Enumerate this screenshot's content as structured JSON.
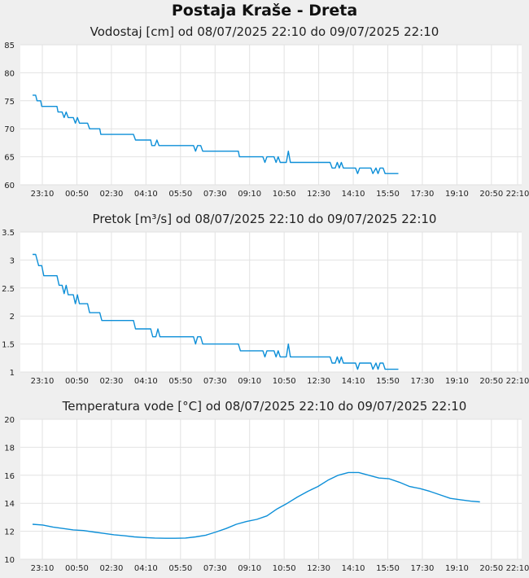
{
  "page_title": "Postaja Kraše - Dreta",
  "chart_data": [
    {
      "type": "line",
      "title": "Vodostaj [cm] od 08/07/2025 22:10 do 09/07/2025 22:10",
      "xlabel": "",
      "ylabel": "",
      "ylim": [
        60,
        85
      ],
      "yticks": [
        "60",
        "65",
        "70",
        "75",
        "80",
        "85"
      ],
      "xticks": [
        "23:10",
        "00:50",
        "02:30",
        "04:10",
        "05:50",
        "07:30",
        "09:10",
        "10:50",
        "12:30",
        "14:10",
        "15:50",
        "17:30",
        "19:10",
        "20:50",
        "22:10"
      ],
      "series": [
        {
          "values": [
            [
              0,
              76
            ],
            [
              0.15,
              76
            ],
            [
              0.22,
              75
            ],
            [
              0.4,
              75
            ],
            [
              0.45,
              74
            ],
            [
              1.2,
              74
            ],
            [
              1.25,
              73
            ],
            [
              1.45,
              73
            ],
            [
              1.55,
              72
            ],
            [
              1.65,
              73
            ],
            [
              1.75,
              72
            ],
            [
              2.0,
              72
            ],
            [
              2.1,
              71
            ],
            [
              2.2,
              72
            ],
            [
              2.3,
              71
            ],
            [
              2.7,
              71
            ],
            [
              2.8,
              70
            ],
            [
              3.3,
              70
            ],
            [
              3.35,
              69
            ],
            [
              4.95,
              69
            ],
            [
              5.05,
              68
            ],
            [
              5.8,
              68
            ],
            [
              5.85,
              67
            ],
            [
              6.0,
              67
            ],
            [
              6.1,
              68
            ],
            [
              6.2,
              67
            ],
            [
              7.9,
              67
            ],
            [
              8.0,
              66
            ],
            [
              8.1,
              67
            ],
            [
              8.25,
              67
            ],
            [
              8.35,
              66
            ],
            [
              10.1,
              66
            ],
            [
              10.15,
              65
            ],
            [
              11.3,
              65
            ],
            [
              11.4,
              64
            ],
            [
              11.5,
              65
            ],
            [
              11.85,
              65
            ],
            [
              11.95,
              64
            ],
            [
              12.05,
              65
            ],
            [
              12.15,
              64
            ],
            [
              12.45,
              64
            ],
            [
              12.55,
              66
            ],
            [
              12.65,
              64
            ],
            [
              14.6,
              64
            ],
            [
              14.7,
              63
            ],
            [
              14.85,
              63
            ],
            [
              14.95,
              64
            ],
            [
              15.05,
              63
            ],
            [
              15.15,
              64
            ],
            [
              15.25,
              63
            ],
            [
              15.85,
              63
            ],
            [
              15.95,
              62
            ],
            [
              16.05,
              63
            ],
            [
              16.6,
              63
            ],
            [
              16.7,
              62
            ],
            [
              16.85,
              63
            ],
            [
              16.95,
              62
            ],
            [
              17.05,
              63
            ],
            [
              17.2,
              63
            ],
            [
              17.3,
              62
            ],
            [
              17.95,
              62
            ]
          ]
        }
      ]
    },
    {
      "type": "line",
      "title": "Pretok [m³/s] od 08/07/2025 22:10 do 09/07/2025 22:10",
      "xlabel": "",
      "ylabel": "",
      "ylim": [
        1,
        3.5
      ],
      "yticks": [
        "1",
        "1.5",
        "2",
        "2.5",
        "3",
        "3.5"
      ],
      "xticks": [
        "23:10",
        "00:50",
        "02:30",
        "04:10",
        "05:50",
        "07:30",
        "09:10",
        "10:50",
        "12:30",
        "14:10",
        "15:50",
        "17:30",
        "19:10",
        "20:50",
        "22:10"
      ],
      "series": [
        {
          "values": [
            [
              0,
              3.1
            ],
            [
              0.15,
              3.1
            ],
            [
              0.3,
              2.9
            ],
            [
              0.45,
              2.9
            ],
            [
              0.55,
              2.72
            ],
            [
              1.2,
              2.72
            ],
            [
              1.3,
              2.55
            ],
            [
              1.45,
              2.55
            ],
            [
              1.55,
              2.4
            ],
            [
              1.65,
              2.55
            ],
            [
              1.75,
              2.38
            ],
            [
              2.0,
              2.38
            ],
            [
              2.1,
              2.22
            ],
            [
              2.2,
              2.38
            ],
            [
              2.3,
              2.22
            ],
            [
              2.7,
              2.22
            ],
            [
              2.8,
              2.06
            ],
            [
              3.3,
              2.06
            ],
            [
              3.4,
              1.92
            ],
            [
              4.95,
              1.92
            ],
            [
              5.05,
              1.77
            ],
            [
              5.8,
              1.77
            ],
            [
              5.9,
              1.63
            ],
            [
              6.05,
              1.63
            ],
            [
              6.15,
              1.77
            ],
            [
              6.25,
              1.63
            ],
            [
              7.9,
              1.63
            ],
            [
              8.0,
              1.5
            ],
            [
              8.1,
              1.63
            ],
            [
              8.25,
              1.63
            ],
            [
              8.35,
              1.5
            ],
            [
              10.1,
              1.5
            ],
            [
              10.2,
              1.38
            ],
            [
              11.3,
              1.38
            ],
            [
              11.4,
              1.27
            ],
            [
              11.5,
              1.38
            ],
            [
              11.85,
              1.38
            ],
            [
              11.95,
              1.27
            ],
            [
              12.05,
              1.38
            ],
            [
              12.15,
              1.27
            ],
            [
              12.45,
              1.27
            ],
            [
              12.55,
              1.5
            ],
            [
              12.65,
              1.27
            ],
            [
              14.6,
              1.27
            ],
            [
              14.7,
              1.16
            ],
            [
              14.85,
              1.16
            ],
            [
              14.95,
              1.27
            ],
            [
              15.05,
              1.16
            ],
            [
              15.15,
              1.27
            ],
            [
              15.25,
              1.16
            ],
            [
              15.85,
              1.16
            ],
            [
              15.95,
              1.05
            ],
            [
              16.05,
              1.16
            ],
            [
              16.6,
              1.16
            ],
            [
              16.7,
              1.05
            ],
            [
              16.85,
              1.16
            ],
            [
              16.95,
              1.05
            ],
            [
              17.05,
              1.16
            ],
            [
              17.2,
              1.16
            ],
            [
              17.3,
              1.05
            ],
            [
              17.95,
              1.05
            ]
          ]
        }
      ]
    },
    {
      "type": "line",
      "title": "Temperatura vode [°C] od 08/07/2025 22:10 do 09/07/2025 22:10",
      "xlabel": "",
      "ylabel": "",
      "ylim": [
        10,
        20
      ],
      "yticks": [
        "10",
        "12",
        "14",
        "16",
        "18",
        "20"
      ],
      "xticks": [
        "23:10",
        "00:50",
        "02:30",
        "04:10",
        "05:50",
        "07:30",
        "09:10",
        "10:50",
        "12:30",
        "14:10",
        "15:50",
        "17:30",
        "19:10",
        "20:50",
        "22:10"
      ],
      "series": [
        {
          "values": [
            [
              0,
              12.5
            ],
            [
              0.5,
              12.45
            ],
            [
              1.0,
              12.3
            ],
            [
              1.5,
              12.2
            ],
            [
              2.0,
              12.1
            ],
            [
              2.5,
              12.05
            ],
            [
              3.0,
              11.95
            ],
            [
              3.5,
              11.85
            ],
            [
              4.0,
              11.75
            ],
            [
              4.5,
              11.68
            ],
            [
              5.0,
              11.6
            ],
            [
              5.5,
              11.55
            ],
            [
              6.0,
              11.52
            ],
            [
              6.5,
              11.5
            ],
            [
              7.0,
              11.5
            ],
            [
              7.5,
              11.52
            ],
            [
              8.0,
              11.6
            ],
            [
              8.5,
              11.72
            ],
            [
              9.0,
              11.95
            ],
            [
              9.5,
              12.2
            ],
            [
              10.0,
              12.5
            ],
            [
              10.5,
              12.7
            ],
            [
              11.0,
              12.85
            ],
            [
              11.5,
              13.1
            ],
            [
              12.0,
              13.6
            ],
            [
              12.5,
              14.0
            ],
            [
              13.0,
              14.45
            ],
            [
              13.5,
              14.85
            ],
            [
              14.0,
              15.2
            ],
            [
              14.5,
              15.65
            ],
            [
              15.0,
              16.0
            ],
            [
              15.5,
              16.2
            ],
            [
              16.0,
              16.2
            ],
            [
              16.5,
              16.0
            ],
            [
              17.0,
              15.8
            ],
            [
              17.5,
              15.75
            ],
            [
              18.0,
              15.5
            ],
            [
              18.5,
              15.2
            ],
            [
              19.0,
              15.05
            ],
            [
              19.5,
              14.85
            ],
            [
              20.0,
              14.6
            ],
            [
              20.5,
              14.35
            ],
            [
              21.0,
              14.25
            ],
            [
              21.5,
              14.15
            ],
            [
              21.95,
              14.1
            ]
          ]
        }
      ]
    }
  ]
}
